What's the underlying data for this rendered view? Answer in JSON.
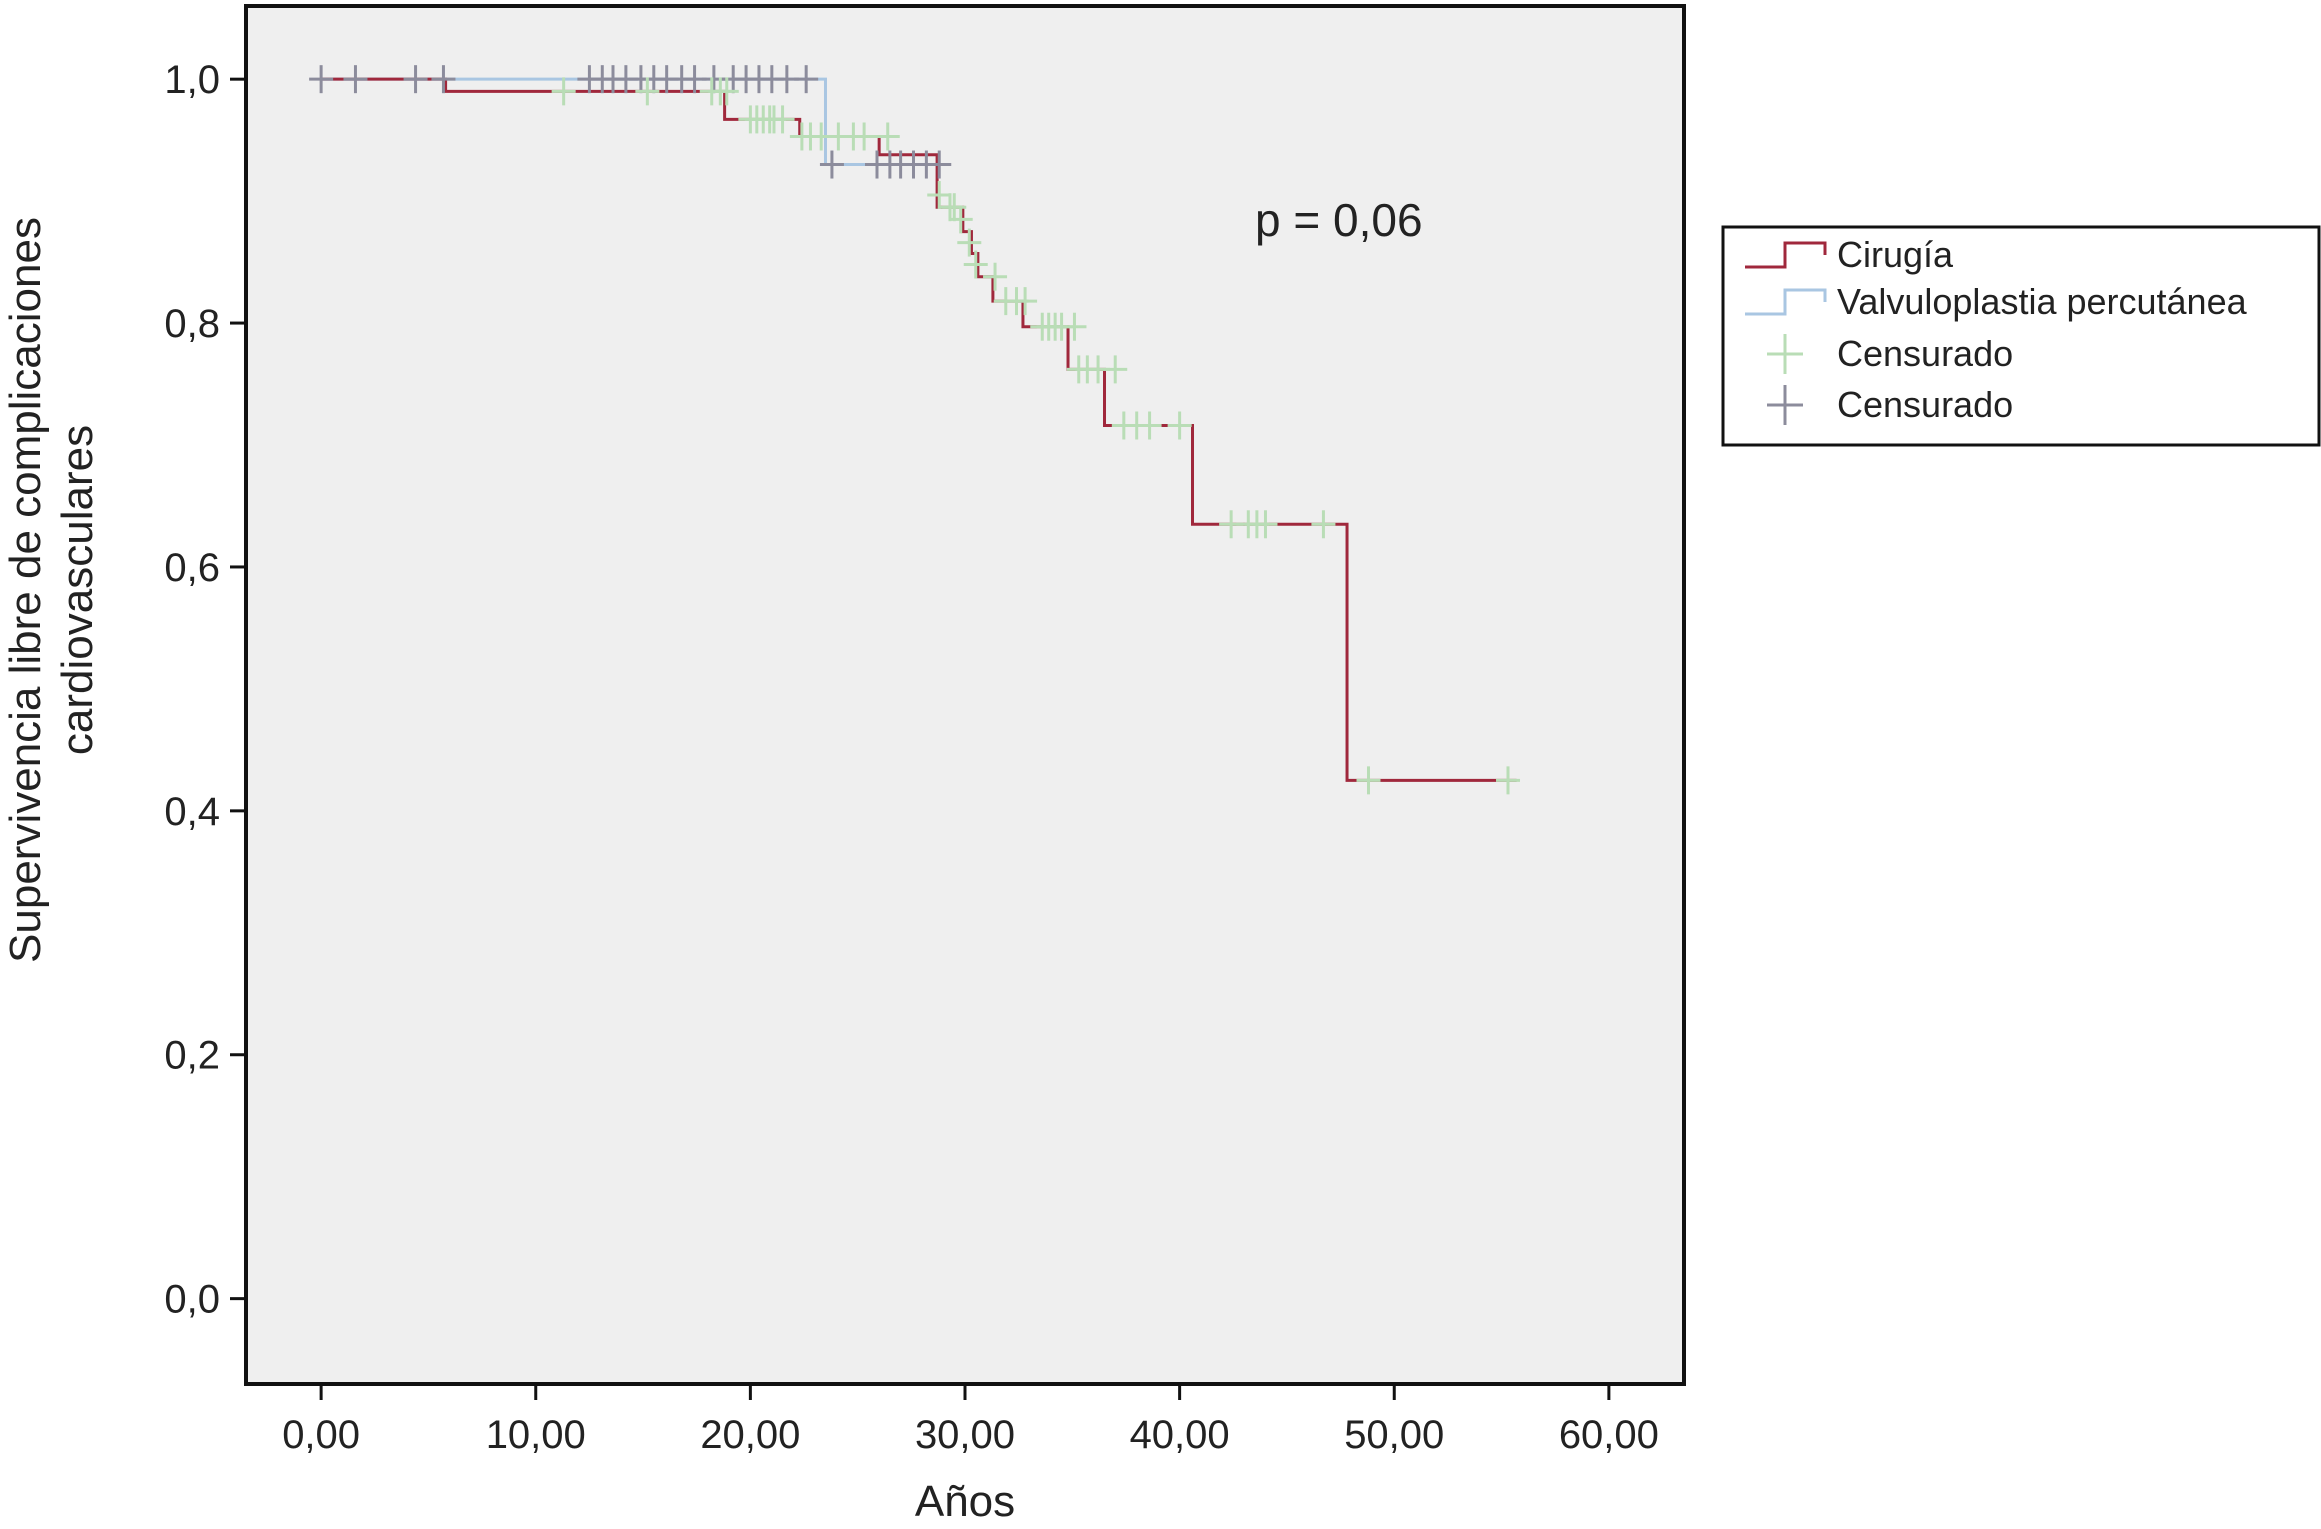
{
  "chart_data": {
    "type": "line",
    "subtype": "kaplan-meier-survival",
    "title": "",
    "xlabel": "Años",
    "ylabel_lines": [
      "Supervivencia libre de complicaciones",
      "cardiovasculares"
    ],
    "xlim": [
      -3.5,
      63.5
    ],
    "ylim": [
      -0.07,
      1.06
    ],
    "x_ticks": [
      0,
      10,
      20,
      30,
      40,
      50,
      60
    ],
    "x_tick_labels": [
      "0,00",
      "10,00",
      "20,00",
      "30,00",
      "40,00",
      "50,00",
      "60,00"
    ],
    "y_ticks": [
      0.0,
      0.2,
      0.4,
      0.6,
      0.8,
      1.0
    ],
    "y_tick_labels": [
      "0,0",
      "0,2",
      "0,4",
      "0,6",
      "0,8",
      "1,0"
    ],
    "annotation": "p = 0,06",
    "colors": {
      "plot_background": "#efefef",
      "cirugia_line": "#a0283c",
      "valvuloplastia_line": "#a9c6e2",
      "censored_cirugia": "#b9ddb6",
      "censored_valvuloplastia": "#8c8c9c"
    },
    "series": [
      {
        "name": "Cirugía",
        "color": "#a0283c",
        "steps": [
          [
            0,
            1.0
          ],
          [
            5.8,
            0.99
          ],
          [
            18.8,
            0.967
          ],
          [
            22.3,
            0.953
          ],
          [
            26.0,
            0.938
          ],
          [
            28.7,
            0.895
          ],
          [
            29.9,
            0.875
          ],
          [
            30.3,
            0.857
          ],
          [
            30.6,
            0.838
          ],
          [
            31.3,
            0.818
          ],
          [
            32.7,
            0.797
          ],
          [
            34.8,
            0.762
          ],
          [
            36.5,
            0.716
          ],
          [
            40.6,
            0.635
          ],
          [
            47.8,
            0.425
          ],
          [
            55.7,
            0.425
          ]
        ],
        "censored": [
          [
            11.3,
            0.99
          ],
          [
            15.2,
            0.99
          ],
          [
            18.2,
            0.99
          ],
          [
            18.6,
            0.99
          ],
          [
            18.9,
            0.99
          ],
          [
            20.0,
            0.967
          ],
          [
            20.3,
            0.967
          ],
          [
            20.6,
            0.967
          ],
          [
            20.9,
            0.967
          ],
          [
            21.1,
            0.967
          ],
          [
            21.5,
            0.967
          ],
          [
            22.4,
            0.953
          ],
          [
            22.8,
            0.953
          ],
          [
            23.3,
            0.953
          ],
          [
            24.1,
            0.953
          ],
          [
            24.8,
            0.953
          ],
          [
            25.3,
            0.953
          ],
          [
            26.4,
            0.953
          ],
          [
            28.8,
            0.905
          ],
          [
            29.3,
            0.895
          ],
          [
            29.5,
            0.895
          ],
          [
            29.8,
            0.885
          ],
          [
            30.2,
            0.866
          ],
          [
            30.5,
            0.848
          ],
          [
            31.4,
            0.838
          ],
          [
            31.9,
            0.818
          ],
          [
            32.4,
            0.818
          ],
          [
            32.8,
            0.818
          ],
          [
            33.6,
            0.797
          ],
          [
            33.9,
            0.797
          ],
          [
            34.2,
            0.797
          ],
          [
            34.5,
            0.797
          ],
          [
            35.1,
            0.797
          ],
          [
            35.3,
            0.762
          ],
          [
            35.7,
            0.762
          ],
          [
            36.2,
            0.762
          ],
          [
            37.0,
            0.762
          ],
          [
            37.4,
            0.716
          ],
          [
            38.0,
            0.716
          ],
          [
            38.6,
            0.716
          ],
          [
            40.0,
            0.716
          ],
          [
            42.4,
            0.635
          ],
          [
            43.2,
            0.635
          ],
          [
            43.6,
            0.635
          ],
          [
            44.0,
            0.635
          ],
          [
            46.7,
            0.635
          ],
          [
            48.8,
            0.425
          ],
          [
            55.3,
            0.425
          ]
        ]
      },
      {
        "name": "Valvuloplastia percutánea",
        "color": "#a9c6e2",
        "steps": [
          [
            0,
            1.0
          ],
          [
            23.5,
            0.93
          ],
          [
            28.9,
            0.93
          ]
        ],
        "censored": [
          [
            0.0,
            1.0
          ],
          [
            1.6,
            1.0
          ],
          [
            4.4,
            1.0
          ],
          [
            5.7,
            1.0
          ],
          [
            12.5,
            1.0
          ],
          [
            13.1,
            1.0
          ],
          [
            13.6,
            1.0
          ],
          [
            14.2,
            1.0
          ],
          [
            14.9,
            1.0
          ],
          [
            15.5,
            1.0
          ],
          [
            16.1,
            1.0
          ],
          [
            16.8,
            1.0
          ],
          [
            17.4,
            1.0
          ],
          [
            18.3,
            1.0
          ],
          [
            19.2,
            1.0
          ],
          [
            19.8,
            1.0
          ],
          [
            20.4,
            1.0
          ],
          [
            21.0,
            1.0
          ],
          [
            21.7,
            1.0
          ],
          [
            22.6,
            1.0
          ],
          [
            23.8,
            0.93
          ],
          [
            25.9,
            0.93
          ],
          [
            26.5,
            0.93
          ],
          [
            27.0,
            0.93
          ],
          [
            27.6,
            0.93
          ],
          [
            28.2,
            0.93
          ],
          [
            28.8,
            0.93
          ]
        ]
      }
    ],
    "legend": {
      "placement": "right",
      "entries": [
        {
          "label": "Cirugía",
          "symbol": "step-line",
          "color": "#a0283c"
        },
        {
          "label": "Valvuloplastia percutánea",
          "symbol": "step-line",
          "color": "#a9c6e2"
        },
        {
          "label": "Censurado",
          "symbol": "plus",
          "color": "#b9ddb6"
        },
        {
          "label": "Censurado",
          "symbol": "plus",
          "color": "#8c8c9c"
        }
      ]
    }
  }
}
